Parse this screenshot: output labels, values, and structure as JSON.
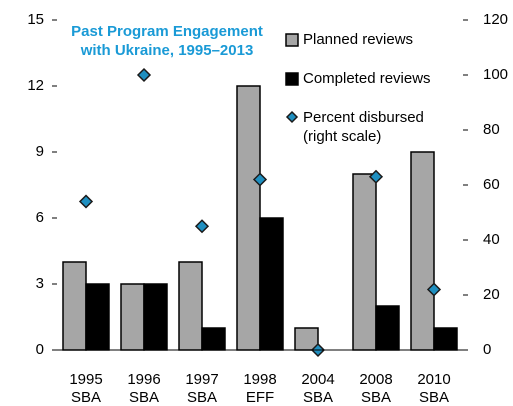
{
  "chart_data": {
    "type": "bar",
    "title": "Past Program Engagement with Ukraine, 1995–2013",
    "categories": [
      "1995 SBA",
      "1996 SBA",
      "1997 SBA",
      "1998 EFF",
      "2004 SBA",
      "2008 SBA",
      "2010 SBA"
    ],
    "series": [
      {
        "name": "Planned reviews",
        "color": "#a6a6a6",
        "values": [
          4,
          3,
          4,
          12,
          1,
          8,
          9
        ]
      },
      {
        "name": "Completed reviews",
        "color": "#000000",
        "values": [
          3,
          3,
          1,
          6,
          0,
          2,
          1
        ]
      },
      {
        "name": "Percent disbursed (right scale)",
        "color": "#1f8fc0",
        "type": "scatter",
        "axis": "y2",
        "values": [
          54,
          100,
          45,
          62,
          0,
          63,
          22
        ]
      }
    ],
    "ylim": [
      0,
      15
    ],
    "yticks": [
      0,
      3,
      6,
      9,
      12,
      15
    ],
    "y2lim": [
      0,
      120
    ],
    "y2ticks": [
      0,
      20,
      40,
      60,
      80,
      100,
      120
    ],
    "grid": false,
    "legend": "upper right"
  }
}
